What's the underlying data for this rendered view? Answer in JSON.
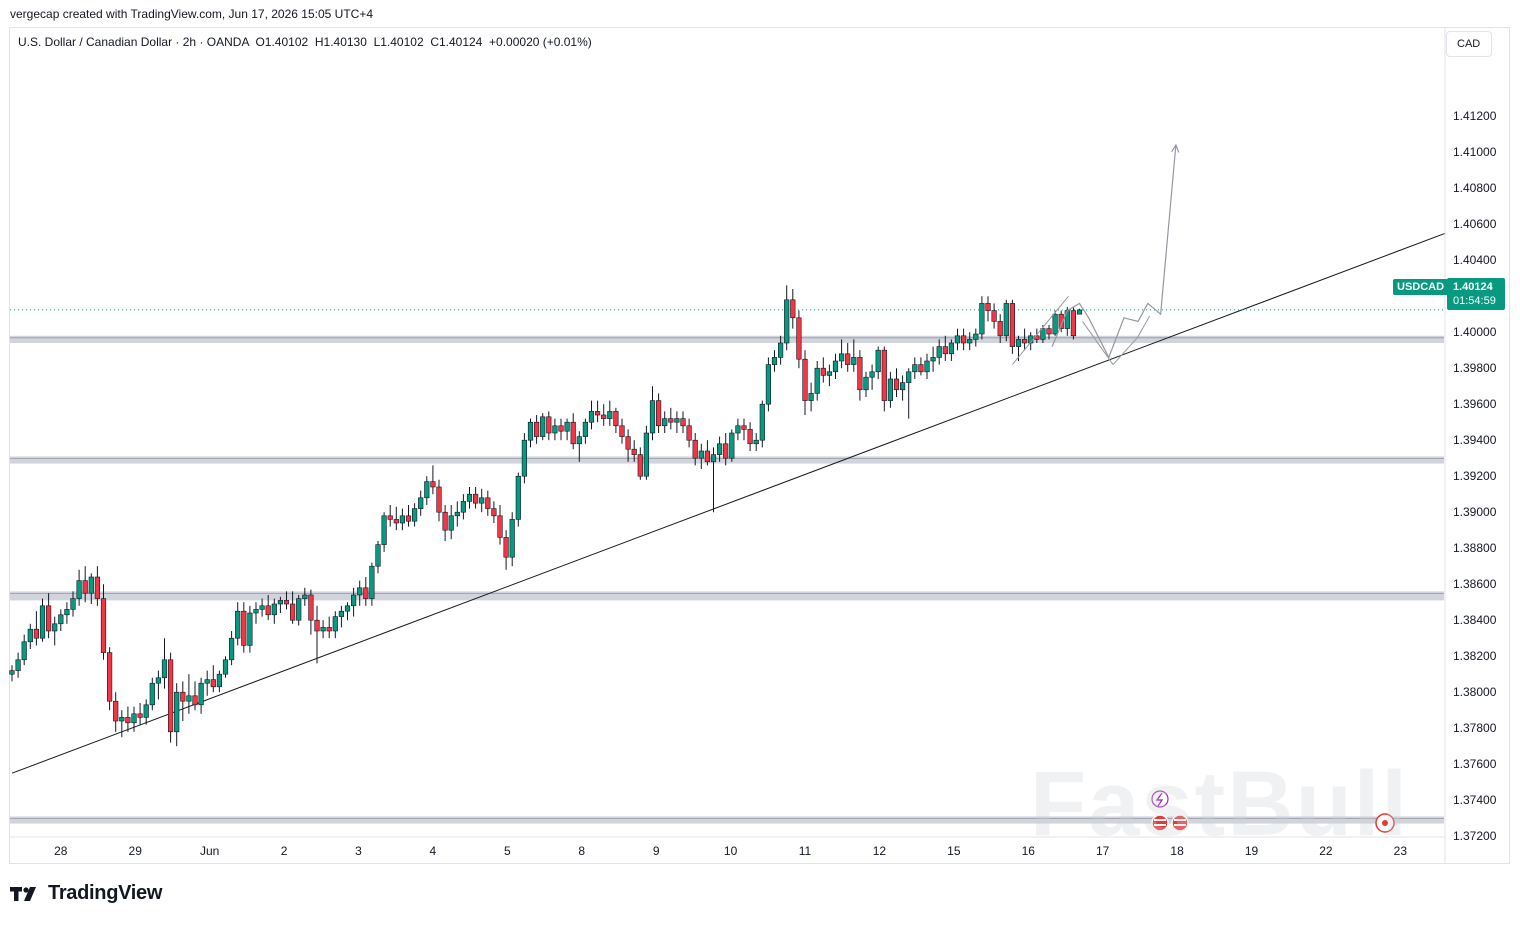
{
  "top_caption": "vergecap created with TradingView.com, Jun 17, 2026 15:05 UTC+4",
  "legend": {
    "symbol_name": "U.S. Dollar / Canadian Dollar",
    "interval": "2h",
    "exchange": "OANDA",
    "open": "O1.40102",
    "high": "H1.40130",
    "low": "L1.40102",
    "close": "C1.40124",
    "change": "+0.00020 (+0.01%)"
  },
  "currency_label": "CAD",
  "last_price": {
    "symbol": "USDCAD",
    "price": "1.40124",
    "countdown": "01:54:59",
    "value": 1.40124
  },
  "branding": {
    "logo_text": "TradingView",
    "watermark": "FastBull"
  },
  "colors": {
    "up": "#089981",
    "down": "#f23645",
    "band": "#d1d4dc",
    "trend": "#131722",
    "projection": "#9598a1"
  },
  "chart_data": {
    "type": "candlestick",
    "y_axis": {
      "min": 1.3704,
      "max": 1.4154,
      "ticks": [
        "1.37200",
        "1.37400",
        "1.37600",
        "1.37800",
        "1.38000",
        "1.38200",
        "1.38400",
        "1.38600",
        "1.38800",
        "1.39000",
        "1.39200",
        "1.39400",
        "1.39600",
        "1.39800",
        "1.40000",
        "1.40200",
        "1.40400",
        "1.40600",
        "1.40800",
        "1.41000",
        "1.41200"
      ]
    },
    "x_axis": {
      "labels": [
        "28",
        "29",
        "Jun",
        "2",
        "3",
        "4",
        "5",
        "8",
        "9",
        "10",
        "11",
        "12",
        "15",
        "16",
        "17",
        "18",
        "19",
        "22",
        "23"
      ],
      "label_index": [
        8.0,
        20.2,
        32.4,
        44.6,
        56.8,
        69.0,
        81.2,
        93.4,
        105.6,
        117.8,
        130.0,
        142.2,
        154.4,
        166.6,
        178.8,
        191.0,
        203.2,
        215.4,
        227.6
      ]
    },
    "candles_ohlc": [
      [
        1.381,
        1.3815,
        1.3806,
        1.3812
      ],
      [
        1.3812,
        1.3822,
        1.3808,
        1.3818
      ],
      [
        1.3818,
        1.3832,
        1.3815,
        1.3828
      ],
      [
        1.3828,
        1.3838,
        1.3824,
        1.3835
      ],
      [
        1.3835,
        1.3845,
        1.3826,
        1.383
      ],
      [
        1.383,
        1.3852,
        1.3828,
        1.3848
      ],
      [
        1.3848,
        1.3855,
        1.383,
        1.3834
      ],
      [
        1.3834,
        1.3842,
        1.3826,
        1.3838
      ],
      [
        1.3838,
        1.3846,
        1.3834,
        1.3843
      ],
      [
        1.3843,
        1.385,
        1.3838,
        1.3846
      ],
      [
        1.3846,
        1.3856,
        1.3842,
        1.3852
      ],
      [
        1.3852,
        1.3868,
        1.3848,
        1.3862
      ],
      [
        1.3862,
        1.387,
        1.385,
        1.3855
      ],
      [
        1.3855,
        1.3866,
        1.3849,
        1.3864
      ],
      [
        1.3864,
        1.387,
        1.3848,
        1.3852
      ],
      [
        1.3852,
        1.386,
        1.3818,
        1.3822
      ],
      [
        1.3822,
        1.3825,
        1.379,
        1.3795
      ],
      [
        1.3795,
        1.38,
        1.3778,
        1.3784
      ],
      [
        1.3784,
        1.379,
        1.3775,
        1.3786
      ],
      [
        1.3786,
        1.3792,
        1.3778,
        1.3783
      ],
      [
        1.3783,
        1.3792,
        1.3778,
        1.3788
      ],
      [
        1.3788,
        1.3794,
        1.3782,
        1.3786
      ],
      [
        1.3786,
        1.3796,
        1.3782,
        1.3793
      ],
      [
        1.3793,
        1.3808,
        1.379,
        1.3805
      ],
      [
        1.3805,
        1.3812,
        1.3796,
        1.3808
      ],
      [
        1.3808,
        1.383,
        1.3802,
        1.3818
      ],
      [
        1.3818,
        1.3822,
        1.3772,
        1.3778
      ],
      [
        1.3778,
        1.3805,
        1.377,
        1.38
      ],
      [
        1.38,
        1.3806,
        1.3784,
        1.3795
      ],
      [
        1.3795,
        1.381,
        1.3788,
        1.3798
      ],
      [
        1.3798,
        1.3806,
        1.379,
        1.3793
      ],
      [
        1.3793,
        1.3808,
        1.3788,
        1.3805
      ],
      [
        1.3805,
        1.3812,
        1.3798,
        1.3807
      ],
      [
        1.3807,
        1.3815,
        1.38,
        1.3803
      ],
      [
        1.3803,
        1.3812,
        1.38,
        1.381
      ],
      [
        1.381,
        1.382,
        1.3808,
        1.3818
      ],
      [
        1.3818,
        1.3834,
        1.3815,
        1.383
      ],
      [
        1.383,
        1.385,
        1.3826,
        1.3845
      ],
      [
        1.3845,
        1.385,
        1.3822,
        1.3826
      ],
      [
        1.3826,
        1.3848,
        1.3822,
        1.3844
      ],
      [
        1.3844,
        1.385,
        1.3838,
        1.3846
      ],
      [
        1.3846,
        1.3852,
        1.3842,
        1.3848
      ],
      [
        1.3848,
        1.3854,
        1.384,
        1.3843
      ],
      [
        1.3843,
        1.3852,
        1.3838,
        1.3849
      ],
      [
        1.3849,
        1.3853,
        1.3844,
        1.3851
      ],
      [
        1.3851,
        1.3856,
        1.3846,
        1.3849
      ],
      [
        1.3849,
        1.3856,
        1.3838,
        1.384
      ],
      [
        1.384,
        1.3854,
        1.3837,
        1.3852
      ],
      [
        1.3852,
        1.3858,
        1.3848,
        1.3854
      ],
      [
        1.3854,
        1.3857,
        1.3832,
        1.384
      ],
      [
        1.384,
        1.3848,
        1.3816,
        1.3834
      ],
      [
        1.3834,
        1.384,
        1.383,
        1.3836
      ],
      [
        1.3836,
        1.3842,
        1.383,
        1.3834
      ],
      [
        1.3834,
        1.3845,
        1.383,
        1.3842
      ],
      [
        1.3842,
        1.3848,
        1.3836,
        1.3845
      ],
      [
        1.3845,
        1.385,
        1.384,
        1.3848
      ],
      [
        1.3848,
        1.3858,
        1.3842,
        1.3854
      ],
      [
        1.3854,
        1.3862,
        1.3848,
        1.3858
      ],
      [
        1.3858,
        1.3864,
        1.3848,
        1.3852
      ],
      [
        1.3852,
        1.3872,
        1.3848,
        1.387
      ],
      [
        1.387,
        1.3884,
        1.3866,
        1.3882
      ],
      [
        1.3882,
        1.39,
        1.3878,
        1.3898
      ],
      [
        1.3898,
        1.3904,
        1.3892,
        1.3896
      ],
      [
        1.3896,
        1.3903,
        1.389,
        1.3894
      ],
      [
        1.3894,
        1.3902,
        1.389,
        1.3898
      ],
      [
        1.3898,
        1.3904,
        1.3892,
        1.3895
      ],
      [
        1.3895,
        1.3905,
        1.3892,
        1.3902
      ],
      [
        1.3902,
        1.3912,
        1.3898,
        1.3908
      ],
      [
        1.3908,
        1.392,
        1.3904,
        1.3917
      ],
      [
        1.3917,
        1.3926,
        1.391,
        1.3914
      ],
      [
        1.3914,
        1.3918,
        1.3895,
        1.39
      ],
      [
        1.39,
        1.3904,
        1.3884,
        1.389
      ],
      [
        1.389,
        1.3904,
        1.3885,
        1.3898
      ],
      [
        1.3898,
        1.3906,
        1.3892,
        1.39
      ],
      [
        1.39,
        1.391,
        1.3896,
        1.3906
      ],
      [
        1.3906,
        1.3914,
        1.3902,
        1.391
      ],
      [
        1.391,
        1.3914,
        1.3902,
        1.3905
      ],
      [
        1.3905,
        1.3913,
        1.39,
        1.3908
      ],
      [
        1.3908,
        1.3912,
        1.3898,
        1.3902
      ],
      [
        1.3902,
        1.3906,
        1.3894,
        1.3898
      ],
      [
        1.3898,
        1.3904,
        1.3882,
        1.3886
      ],
      [
        1.3886,
        1.389,
        1.3868,
        1.3875
      ],
      [
        1.3875,
        1.39,
        1.387,
        1.3896
      ],
      [
        1.3896,
        1.3922,
        1.3892,
        1.392
      ],
      [
        1.392,
        1.3944,
        1.3916,
        1.394
      ],
      [
        1.394,
        1.3952,
        1.3936,
        1.395
      ],
      [
        1.395,
        1.3954,
        1.3938,
        1.3942
      ],
      [
        1.3942,
        1.3955,
        1.394,
        1.3953
      ],
      [
        1.3953,
        1.3956,
        1.394,
        1.3944
      ],
      [
        1.3944,
        1.3952,
        1.394,
        1.3948
      ],
      [
        1.3948,
        1.3952,
        1.394,
        1.3945
      ],
      [
        1.3945,
        1.3952,
        1.394,
        1.395
      ],
      [
        1.395,
        1.3955,
        1.3935,
        1.3938
      ],
      [
        1.3938,
        1.3945,
        1.3928,
        1.3942
      ],
      [
        1.3942,
        1.3952,
        1.3938,
        1.395
      ],
      [
        1.395,
        1.3962,
        1.3946,
        1.3956
      ],
      [
        1.3956,
        1.3962,
        1.395,
        1.3954
      ],
      [
        1.3954,
        1.396,
        1.3948,
        1.3952
      ],
      [
        1.3952,
        1.3962,
        1.3948,
        1.3956
      ],
      [
        1.3956,
        1.3958,
        1.3944,
        1.3948
      ],
      [
        1.3948,
        1.3952,
        1.3938,
        1.3942
      ],
      [
        1.3942,
        1.3946,
        1.3928,
        1.3935
      ],
      [
        1.3935,
        1.394,
        1.3928,
        1.3932
      ],
      [
        1.3932,
        1.3936,
        1.3918,
        1.392
      ],
      [
        1.392,
        1.3948,
        1.3918,
        1.3944
      ],
      [
        1.3944,
        1.397,
        1.394,
        1.3962
      ],
      [
        1.3962,
        1.3966,
        1.3944,
        1.3948
      ],
      [
        1.3948,
        1.3956,
        1.3944,
        1.3952
      ],
      [
        1.3952,
        1.3958,
        1.3946,
        1.395
      ],
      [
        1.395,
        1.3956,
        1.3944,
        1.3952
      ],
      [
        1.3952,
        1.3956,
        1.3944,
        1.3948
      ],
      [
        1.3948,
        1.3952,
        1.3936,
        1.394
      ],
      [
        1.394,
        1.3944,
        1.3926,
        1.393
      ],
      [
        1.393,
        1.3938,
        1.3924,
        1.3934
      ],
      [
        1.3934,
        1.394,
        1.3926,
        1.3928
      ],
      [
        1.3928,
        1.3936,
        1.39,
        1.3932
      ],
      [
        1.3932,
        1.3942,
        1.3928,
        1.3938
      ],
      [
        1.3938,
        1.3944,
        1.3926,
        1.393
      ],
      [
        1.393,
        1.3946,
        1.3928,
        1.3944
      ],
      [
        1.3944,
        1.3952,
        1.394,
        1.3948
      ],
      [
        1.3948,
        1.3952,
        1.394,
        1.3946
      ],
      [
        1.3946,
        1.395,
        1.3934,
        1.3938
      ],
      [
        1.3938,
        1.3944,
        1.3934,
        1.394
      ],
      [
        1.394,
        1.3962,
        1.3936,
        1.396
      ],
      [
        1.396,
        1.3986,
        1.3956,
        1.3982
      ],
      [
        1.3982,
        1.399,
        1.3978,
        1.3986
      ],
      [
        1.3986,
        1.3998,
        1.3982,
        1.3994
      ],
      [
        1.3994,
        1.4026,
        1.399,
        1.4018
      ],
      [
        1.4018,
        1.4024,
        1.4002,
        1.4008
      ],
      [
        1.4008,
        1.4012,
        1.398,
        1.3985
      ],
      [
        1.3985,
        1.399,
        1.3954,
        1.3962
      ],
      [
        1.3962,
        1.3972,
        1.3956,
        1.3966
      ],
      [
        1.3966,
        1.3984,
        1.3962,
        1.398
      ],
      [
        1.398,
        1.3986,
        1.3972,
        1.3976
      ],
      [
        1.3976,
        1.3982,
        1.397,
        1.3978
      ],
      [
        1.3978,
        1.3988,
        1.3974,
        1.3984
      ],
      [
        1.3984,
        1.3996,
        1.398,
        1.3988
      ],
      [
        1.3988,
        1.3994,
        1.3978,
        1.3982
      ],
      [
        1.3982,
        1.3996,
        1.3978,
        1.3986
      ],
      [
        1.3986,
        1.399,
        1.3962,
        1.3968
      ],
      [
        1.3968,
        1.3978,
        1.3964,
        1.3975
      ],
      [
        1.3975,
        1.3982,
        1.3968,
        1.3978
      ],
      [
        1.3978,
        1.3992,
        1.3974,
        1.399
      ],
      [
        1.399,
        1.3992,
        1.3956,
        1.3962
      ],
      [
        1.3962,
        1.3978,
        1.3958,
        1.3974
      ],
      [
        1.3974,
        1.398,
        1.3964,
        1.3968
      ],
      [
        1.3968,
        1.3976,
        1.3962,
        1.3972
      ],
      [
        1.3972,
        1.398,
        1.3952,
        1.3978
      ],
      [
        1.3978,
        1.3986,
        1.3974,
        1.3982
      ],
      [
        1.3982,
        1.3986,
        1.3976,
        1.3978
      ],
      [
        1.3978,
        1.3988,
        1.3974,
        1.3984
      ],
      [
        1.3984,
        1.3992,
        1.3978,
        1.3986
      ],
      [
        1.3986,
        1.3996,
        1.3982,
        1.3992
      ],
      [
        1.3992,
        1.3998,
        1.3984,
        1.3988
      ],
      [
        1.3988,
        1.3996,
        1.3984,
        1.3994
      ],
      [
        1.3994,
        1.4002,
        1.399,
        1.3998
      ],
      [
        1.3998,
        1.4002,
        1.399,
        1.3994
      ],
      [
        1.3994,
        1.4,
        1.399,
        1.3996
      ],
      [
        1.3996,
        1.4002,
        1.3992,
        1.3999
      ],
      [
        1.3999,
        1.402,
        1.3996,
        1.4016
      ],
      [
        1.4016,
        1.402,
        1.4006,
        1.4012
      ],
      [
        1.4012,
        1.4016,
        1.4002,
        1.4006
      ],
      [
        1.4006,
        1.401,
        1.3994,
        1.3998
      ],
      [
        1.3998,
        1.4018,
        1.3995,
        1.4016
      ],
      [
        1.4016,
        1.4018,
        1.3988,
        1.3992
      ],
      [
        1.3992,
        1.3998,
        1.3984,
        1.3996
      ],
      [
        1.3996,
        1.4002,
        1.399,
        1.3994
      ],
      [
        1.3994,
        1.4,
        1.399,
        1.3998
      ],
      [
        1.3998,
        1.4002,
        1.3994,
        1.3996
      ],
      [
        1.3996,
        1.4004,
        1.3994,
        1.4002
      ],
      [
        1.4002,
        1.4004,
        1.3996,
        1.3999
      ],
      [
        1.3999,
        1.4012,
        1.3998,
        1.401
      ],
      [
        1.401,
        1.4012,
        1.4,
        1.4002
      ],
      [
        1.4002,
        1.4014,
        1.3998,
        1.4012
      ],
      [
        1.4012,
        1.4014,
        1.3996,
        1.3998
      ],
      [
        1.401,
        1.4013,
        1.401,
        1.40124
      ]
    ],
    "horizontal_bands": [
      {
        "low": 1.3994,
        "high": 1.3998
      },
      {
        "low": 1.3927,
        "high": 1.3931
      },
      {
        "low": 1.3851,
        "high": 1.3856
      },
      {
        "low": 1.3727,
        "high": 1.3731
      }
    ],
    "trendline": [
      [
        0,
        1.3755
      ],
      [
        235,
        1.4055
      ]
    ],
    "projection_path": [
      [
        170.5,
        1.3992
      ],
      [
        173.0,
        1.4012
      ],
      [
        175.0,
        1.4016
      ],
      [
        176.5,
        1.4008
      ],
      [
        178.0,
        1.3998
      ],
      [
        179.8,
        1.3986
      ],
      [
        182.3,
        1.4008
      ],
      [
        184.6,
        1.4006
      ],
      [
        186.2,
        1.4016
      ],
      [
        188.3,
        1.401
      ],
      [
        190.8,
        1.4104
      ]
    ],
    "wedge_lines": [
      [
        [
          164.0,
          1.3982
        ],
        [
          173.2,
          1.402
        ]
      ],
      [
        [
          175.5,
          1.4006
        ],
        [
          180.5,
          1.3982
        ]
      ],
      [
        [
          180.5,
          1.3982
        ],
        [
          184.5,
          1.3997
        ]
      ],
      [
        [
          184.5,
          1.3997
        ],
        [
          186.5,
          1.4009
        ]
      ]
    ]
  }
}
